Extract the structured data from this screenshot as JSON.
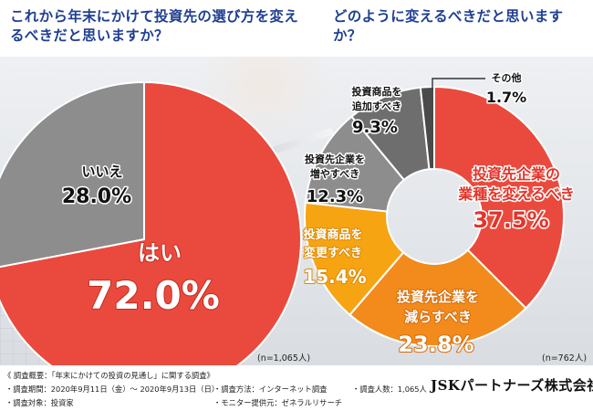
{
  "questions": {
    "left": "これから年末にかけて投資先の選び方を変えるべきだと思いますか？",
    "right": "どのように変えるべきだと思いますか？"
  },
  "chart_data": [
    {
      "type": "pie",
      "n_label": "(n=1,065人)",
      "slices": [
        {
          "label": "はい",
          "value": 72.0,
          "value_label": "72.0%",
          "color": "#ea4a3d"
        },
        {
          "label": "いいえ",
          "value": 28.0,
          "value_label": "28.0%",
          "color": "#8d8d8d"
        }
      ]
    },
    {
      "type": "pie",
      "n_label": "(n=762人)",
      "slices": [
        {
          "label": "投資先企業の業種を変えるべき",
          "value": 37.5,
          "value_label": "37.5%",
          "color": "#ea4a3d"
        },
        {
          "label": "投資先企業を減らすべき",
          "value": 23.8,
          "value_label": "23.8%",
          "color": "#f28a1c"
        },
        {
          "label": "投資商品を変更すべき",
          "value": 15.4,
          "value_label": "15.4%",
          "color": "#f7a413"
        },
        {
          "label": "投資先企業を増やすべき",
          "value": 12.3,
          "value_label": "12.3%",
          "color": "#8d8d8d"
        },
        {
          "label": "投資商品を追加すべき",
          "value": 9.3,
          "value_label": "9.3%",
          "color": "#6e6e6e"
        },
        {
          "label": "その他",
          "value": 1.7,
          "value_label": "1.7%",
          "color": "#4a4a4a"
        }
      ]
    }
  ],
  "footer": {
    "heading": "《 調査概要：「年末にかけての投資の見通し」に関する調査》",
    "period": "・調査期間：2020年9月11日（金）～ 2020年9月13日（日）",
    "target": "・調査対象：投資家",
    "method": "・調査方法：インターネット調査",
    "provider": "・モニター提供元：ゼネラルリサーチ",
    "count": "・調査人数：1,065人",
    "brand": "JSKパートナーズ株式会社"
  }
}
